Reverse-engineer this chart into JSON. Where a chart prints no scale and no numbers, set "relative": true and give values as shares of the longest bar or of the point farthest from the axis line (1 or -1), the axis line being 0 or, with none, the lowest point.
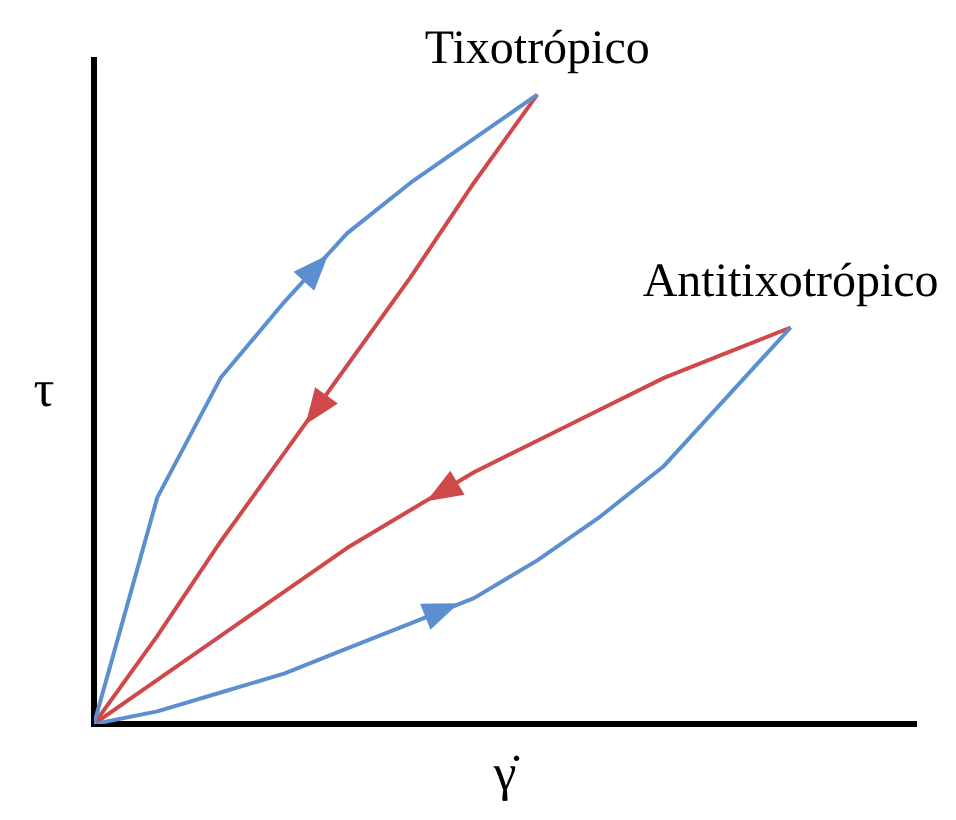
{
  "chart_data": {
    "type": "line",
    "relative": true,
    "xlabel": "γ̇",
    "ylabel": "τ",
    "grid": false,
    "legend": false,
    "tick_labels": false,
    "marker": "none",
    "line_style": "solid",
    "categories": [
      null,
      null,
      null,
      null,
      null,
      null,
      null,
      null,
      null,
      null,
      null,
      null
    ],
    "series": [
      {
        "color": "#5b8fd0",
        "values": [
          0,
          0.36,
          0.55,
          0.67,
          0.78,
          0.86,
          0.93,
          1,
          null,
          null,
          null,
          null
        ]
      },
      {
        "color": "#d0494a",
        "values": [
          0,
          0.14,
          0.29,
          0.43,
          0.57,
          0.71,
          0.86,
          1,
          null,
          null,
          null,
          null
        ]
      },
      {
        "color": "#5b8fd0",
        "values": [
          0,
          0.02,
          0.05,
          0.08,
          0.12,
          0.16,
          0.2,
          0.26,
          0.33,
          0.41,
          0.52,
          0.63
        ]
      },
      {
        "color": "#d0494a",
        "values": [
          0,
          0.07,
          0.14,
          0.21,
          0.28,
          0.34,
          0.4,
          0.45,
          0.5,
          0.55,
          0.59,
          0.63
        ]
      }
    ],
    "annotations": [
      "Tixotrópico",
      "Antitixotrópico"
    ]
  }
}
